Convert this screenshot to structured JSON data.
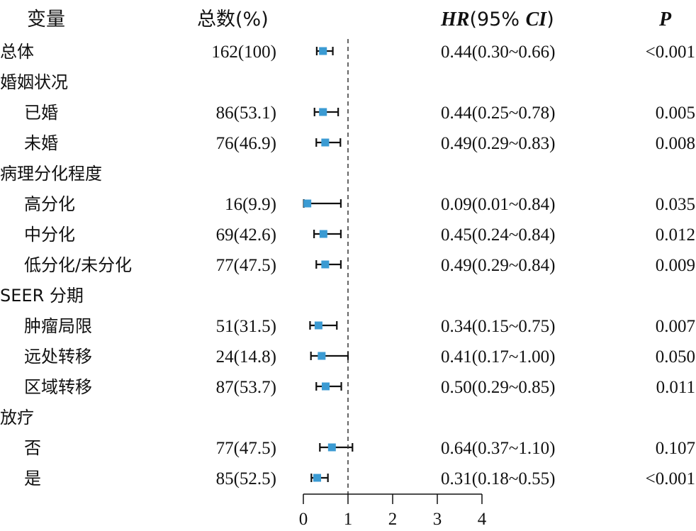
{
  "header": {
    "variable": "变量",
    "count": "总数(%)",
    "hr_prefix": "HR",
    "hr_mid": "(95% ",
    "ci": "CI",
    "hr_suffix": ")",
    "p": "P"
  },
  "chart_data": {
    "type": "forest",
    "x_ticks": [
      0,
      1,
      2,
      3,
      4
    ],
    "xlim": [
      0,
      4
    ],
    "reference_line": 1,
    "marker_color": "#3b9bd3",
    "rows": [
      {
        "label": "总体",
        "indent": false,
        "count": "162(100)",
        "hr": 0.44,
        "lo": 0.3,
        "hi": 0.66,
        "hr_text": "0.44(0.30~0.66)",
        "p": "<0.001"
      },
      {
        "label": "婚姻状况",
        "indent": false
      },
      {
        "label": "已婚",
        "indent": true,
        "count": "86(53.1)",
        "hr": 0.44,
        "lo": 0.25,
        "hi": 0.78,
        "hr_text": "0.44(0.25~0.78)",
        "p": "0.005"
      },
      {
        "label": "未婚",
        "indent": true,
        "count": "76(46.9)",
        "hr": 0.49,
        "lo": 0.29,
        "hi": 0.83,
        "hr_text": "0.49(0.29~0.83)",
        "p": "0.008"
      },
      {
        "label": "病理分化程度",
        "indent": false
      },
      {
        "label": "高分化",
        "indent": true,
        "count": "16(9.9)",
        "hr": 0.09,
        "lo": 0.01,
        "hi": 0.84,
        "hr_text": "0.09(0.01~0.84)",
        "p": "0.035"
      },
      {
        "label": "中分化",
        "indent": true,
        "count": "69(42.6)",
        "hr": 0.45,
        "lo": 0.24,
        "hi": 0.84,
        "hr_text": "0.45(0.24~0.84)",
        "p": "0.012"
      },
      {
        "label": "低分化/未分化",
        "indent": true,
        "count": "77(47.5)",
        "hr": 0.49,
        "lo": 0.29,
        "hi": 0.84,
        "hr_text": "0.49(0.29~0.84)",
        "p": "0.009"
      },
      {
        "label": "SEER 分期",
        "indent": false
      },
      {
        "label": "肿瘤局限",
        "indent": true,
        "count": "51(31.5)",
        "hr": 0.34,
        "lo": 0.15,
        "hi": 0.75,
        "hr_text": "0.34(0.15~0.75)",
        "p": "0.007"
      },
      {
        "label": "远处转移",
        "indent": true,
        "count": "24(14.8)",
        "hr": 0.41,
        "lo": 0.17,
        "hi": 1.0,
        "hr_text": "0.41(0.17~1.00)",
        "p": "0.050"
      },
      {
        "label": "区域转移",
        "indent": true,
        "count": "87(53.7)",
        "hr": 0.5,
        "lo": 0.29,
        "hi": 0.85,
        "hr_text": "0.50(0.29~0.85)",
        "p": "0.011"
      },
      {
        "label": "放疗",
        "indent": false
      },
      {
        "label": "否",
        "indent": true,
        "count": "77(47.5)",
        "hr": 0.64,
        "lo": 0.37,
        "hi": 1.1,
        "hr_text": "0.64(0.37~1.10)",
        "p": "0.107"
      },
      {
        "label": "是",
        "indent": true,
        "count": "85(52.5)",
        "hr": 0.31,
        "lo": 0.18,
        "hi": 0.55,
        "hr_text": "0.31(0.18~0.55)",
        "p": "<0.001"
      }
    ]
  }
}
